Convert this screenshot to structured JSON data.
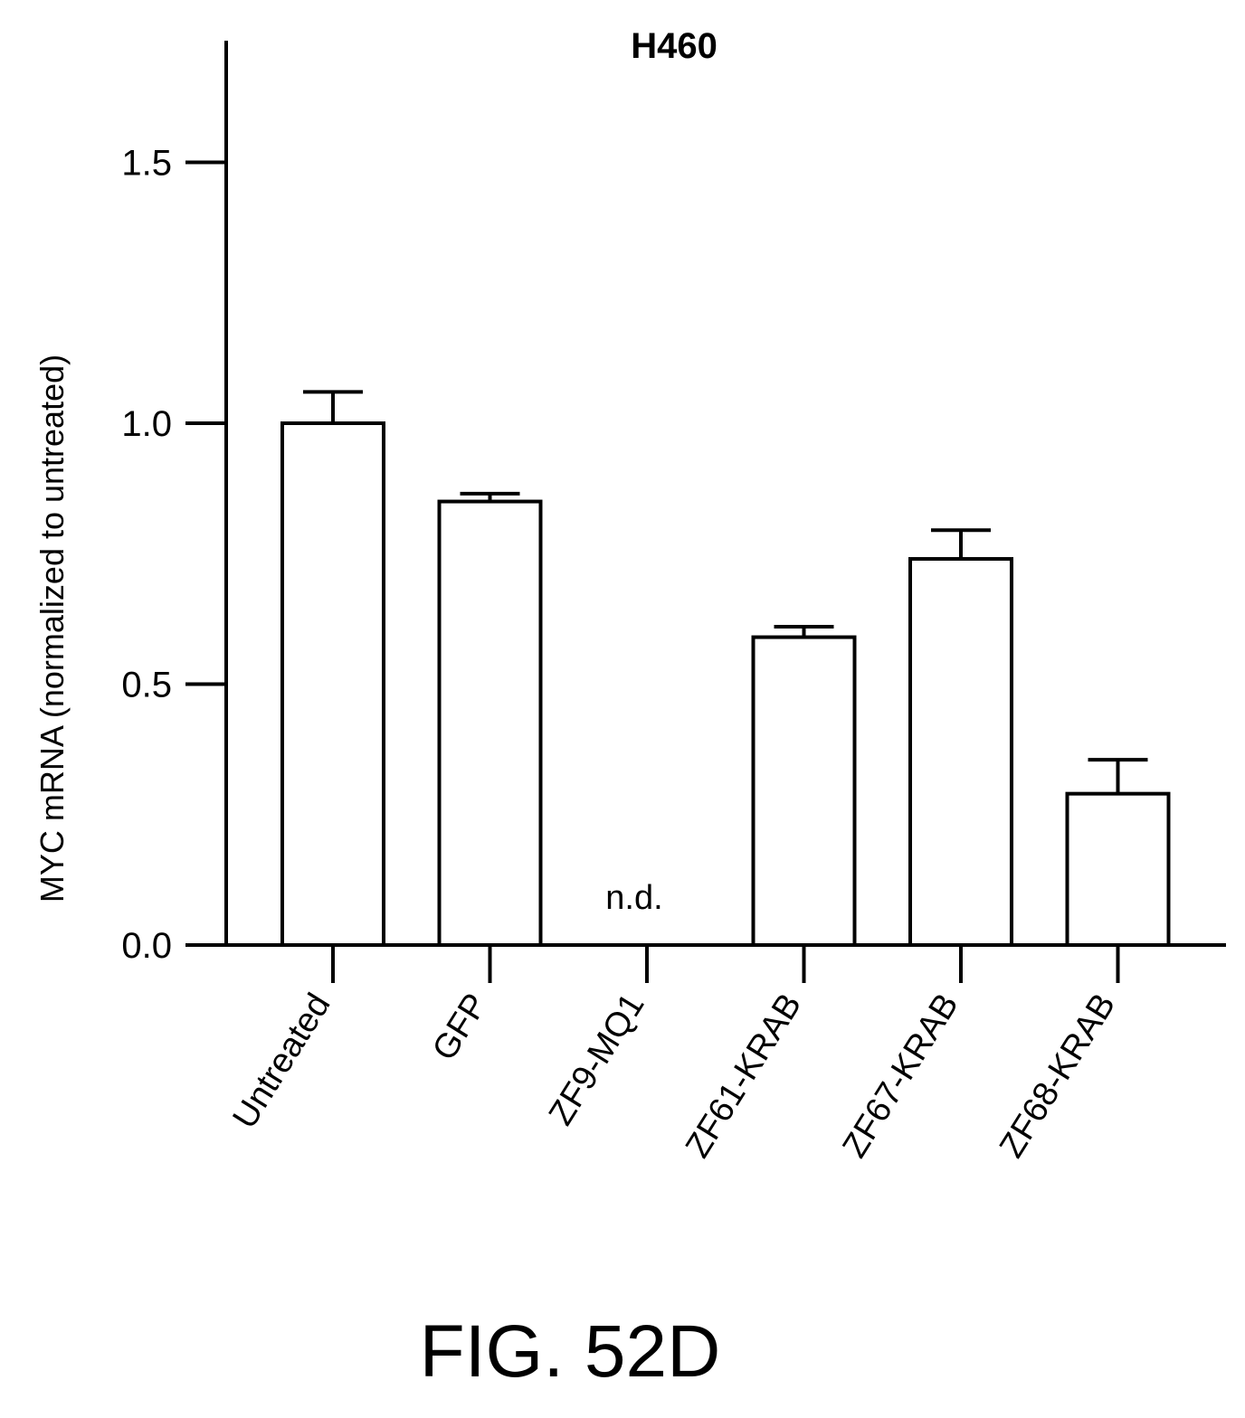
{
  "chart_data": {
    "type": "bar",
    "title": "H460",
    "ylabel": "MYC mRNA (normalized to untreated)",
    "xlabel": "",
    "ylim": [
      0,
      1.75
    ],
    "yticks": [
      "0.0",
      "0.5",
      "1.0",
      "1.5"
    ],
    "categories": [
      "Untreated",
      "GFP",
      "ZF9-MQ1",
      "ZF61-KRAB",
      "ZF67-KRAB",
      "ZF68-KRAB"
    ],
    "values": [
      1.0,
      0.85,
      null,
      0.59,
      0.74,
      0.29
    ],
    "error_upper": [
      0.06,
      0.015,
      null,
      0.02,
      0.055,
      0.065
    ],
    "annotations": [
      {
        "category": "ZF9-MQ1",
        "text": "n.d."
      }
    ],
    "grid": false,
    "legend": "none"
  },
  "figure_caption": "FIG. 52D"
}
